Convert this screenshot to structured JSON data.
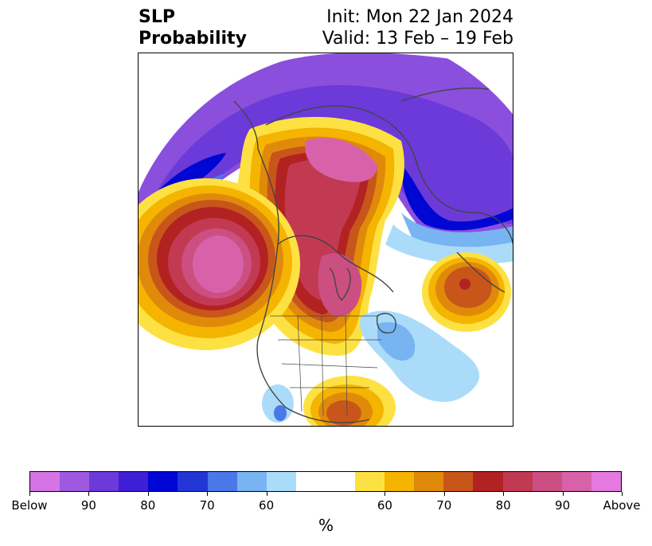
{
  "header": {
    "variable": "SLP",
    "subtitle": "Probability",
    "init": "Init: Mon 22 Jan 2024",
    "valid": "Valid: 13 Feb – 19 Feb"
  },
  "colorbar": {
    "unit": "%",
    "colors": [
      "#d674e6",
      "#9e59e0",
      "#6b3ad9",
      "#3e1fd6",
      "#0006d4",
      "#2236d6",
      "#4a78e8",
      "#78b4f2",
      "#aadcfa",
      "#ffffff",
      "#ffffff",
      "#fde142",
      "#f4b400",
      "#e08a0c",
      "#c8561a",
      "#b32222",
      "#c23a52",
      "#cc4f82",
      "#d862aa",
      "#e47ae0"
    ],
    "ticks": [
      "Below",
      "90",
      "80",
      "70",
      "60",
      "60",
      "70",
      "80",
      "90",
      "Above"
    ]
  },
  "map": {
    "projection": "north polar stereographic",
    "colors": {
      "below_outer": "#8a4fdc",
      "below_mid": "#6b3ad9",
      "below_strong": "#0006d4",
      "below_light": "#78b4f2",
      "below_faint": "#aadcfa",
      "above_yellow": "#fde142",
      "above_orange": "#f4b400",
      "above_dark_orange": "#e08a0c",
      "above_rust": "#c8561a",
      "above_red": "#b32222",
      "above_crimson": "#c23a52",
      "above_pink": "#d862aa",
      "coastline": "#444444"
    }
  }
}
